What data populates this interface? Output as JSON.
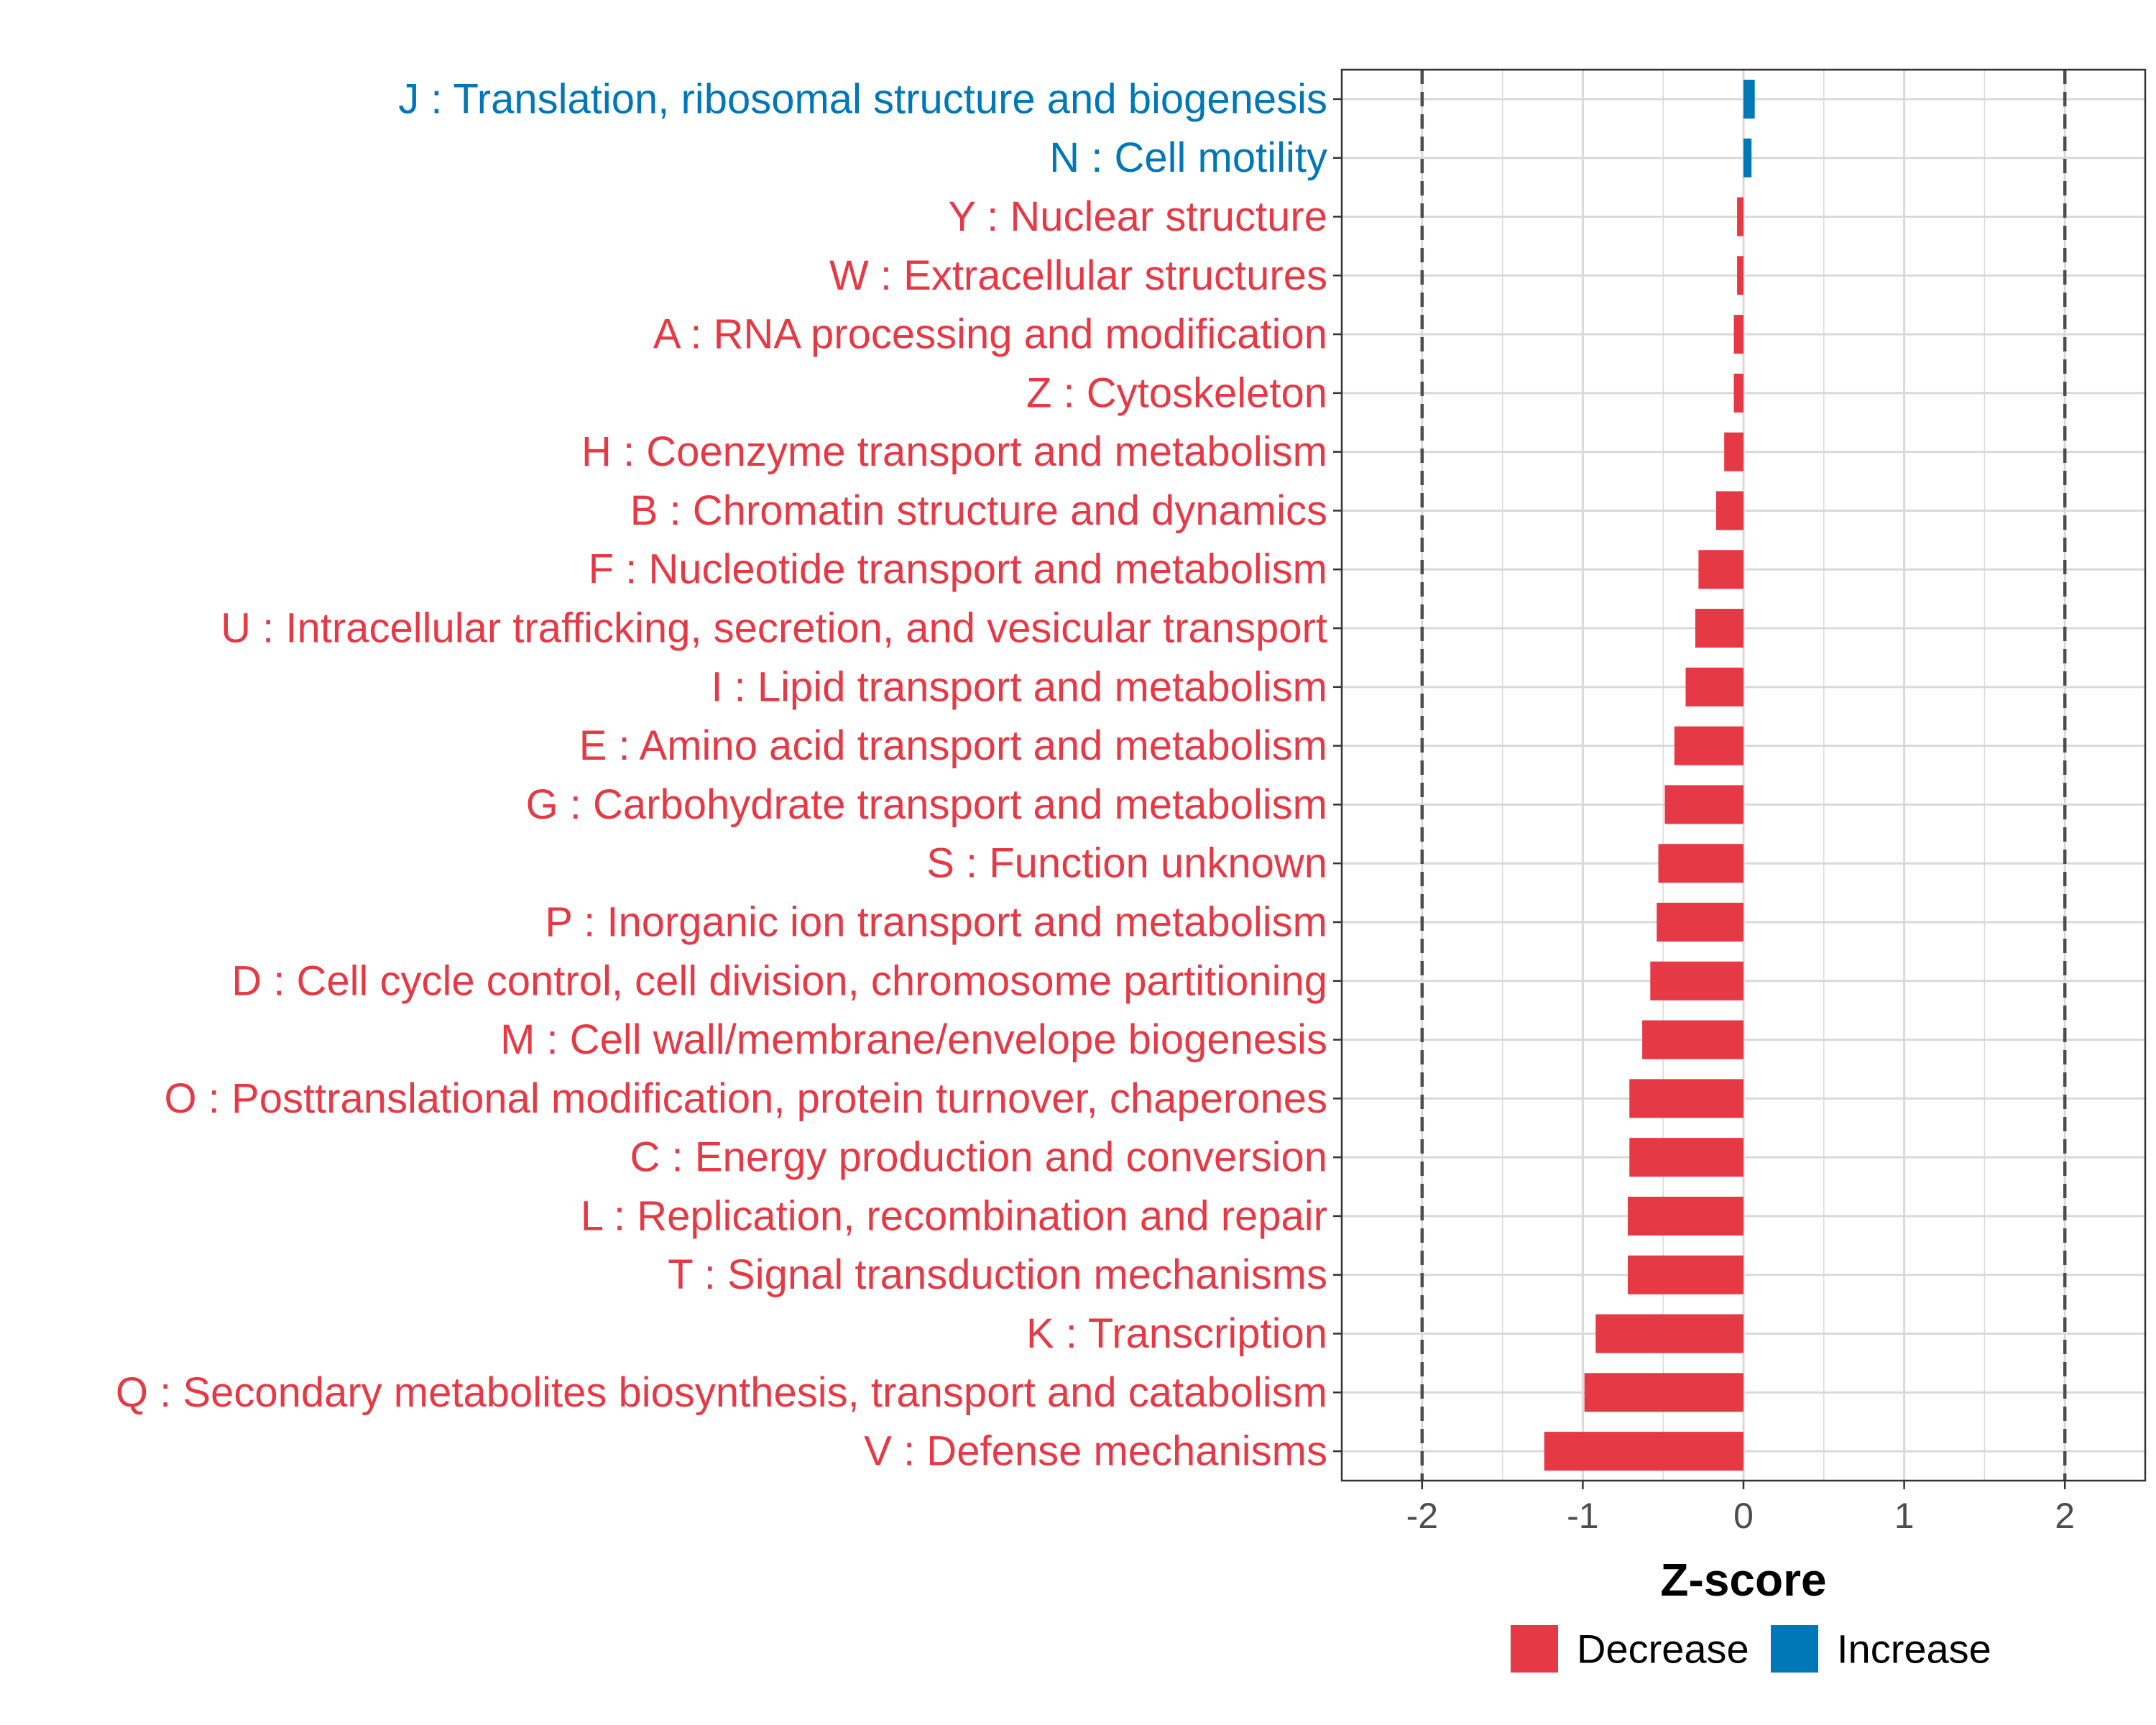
{
  "colors": {
    "decrease": "#E63946",
    "increase": "#0077B6",
    "grid": "#D9D9D9",
    "refline": "#4D4D4D",
    "panel_border": "#333333"
  },
  "chart_data": {
    "type": "bar",
    "orientation": "horizontal",
    "categories": [
      "J : Translation, ribosomal structure and biogenesis",
      "N : Cell motility",
      "Y : Nuclear structure",
      "W : Extracellular structures",
      "A : RNA processing and modification",
      "Z : Cytoskeleton",
      "H : Coenzyme transport and metabolism",
      "B : Chromatin structure and dynamics",
      "F : Nucleotide transport and metabolism",
      "U : Intracellular trafficking, secretion, and vesicular transport",
      "I : Lipid transport and metabolism",
      "E : Amino acid transport and metabolism",
      "G : Carbohydrate transport and metabolism",
      "S : Function unknown",
      "P : Inorganic ion transport and metabolism",
      "D : Cell cycle control, cell division, chromosome partitioning",
      "M : Cell wall/membrane/envelope biogenesis",
      "O : Posttranslational modification, protein turnover, chaperones",
      "C : Energy production and conversion",
      "L : Replication, recombination and repair",
      "T : Signal transduction mechanisms",
      "K : Transcription",
      "Q : Secondary metabolites biosynthesis, transport and catabolism",
      "V : Defense mechanisms"
    ],
    "values": [
      0.07,
      0.05,
      -0.04,
      -0.04,
      -0.06,
      -0.06,
      -0.12,
      -0.17,
      -0.28,
      -0.3,
      -0.36,
      -0.43,
      -0.49,
      -0.53,
      -0.54,
      -0.58,
      -0.63,
      -0.71,
      -0.71,
      -0.72,
      -0.72,
      -0.92,
      -0.99,
      -1.24
    ],
    "groups": [
      "Increase",
      "Increase",
      "Decrease",
      "Decrease",
      "Decrease",
      "Decrease",
      "Decrease",
      "Decrease",
      "Decrease",
      "Decrease",
      "Decrease",
      "Decrease",
      "Decrease",
      "Decrease",
      "Decrease",
      "Decrease",
      "Decrease",
      "Decrease",
      "Decrease",
      "Decrease",
      "Decrease",
      "Decrease",
      "Decrease",
      "Decrease"
    ],
    "xlabel": "Z-score",
    "ylabel": "",
    "xlim": [
      -2.5,
      2.5
    ],
    "xticks": [
      -2,
      -1,
      0,
      1,
      2
    ],
    "xtick_labels": [
      "-2",
      "-1",
      "0",
      "1",
      "2"
    ],
    "reference_lines": [
      -2,
      2
    ],
    "grid": true,
    "legend": {
      "position": "bottom",
      "entries": [
        {
          "label": "Decrease",
          "color_key": "decrease"
        },
        {
          "label": "Increase",
          "color_key": "increase"
        }
      ]
    }
  }
}
